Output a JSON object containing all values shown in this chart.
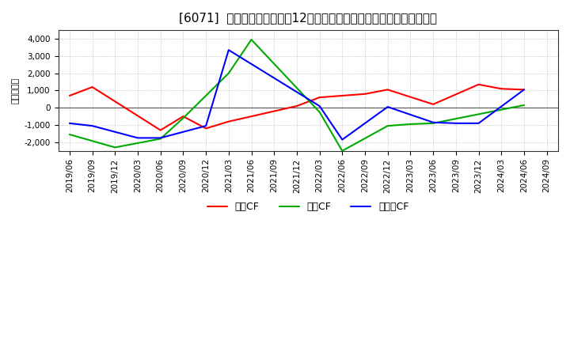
{
  "title": "[6071]  キャッシュフローの12か月移動合計の対前年同期増減額の推移",
  "ylabel": "（百万円）",
  "background_color": "#ffffff",
  "plot_background_color": "#ffffff",
  "grid_color": "#aaaaaa",
  "ylim": [
    -2500,
    4500
  ],
  "yticks": [
    -2000,
    -1000,
    0,
    1000,
    2000,
    3000,
    4000
  ],
  "dates": [
    "2019/06",
    "2019/09",
    "2019/12",
    "2020/03",
    "2020/06",
    "2020/09",
    "2020/12",
    "2021/03",
    "2021/06",
    "2021/09",
    "2021/12",
    "2022/03",
    "2022/06",
    "2022/09",
    "2022/12",
    "2023/03",
    "2023/06",
    "2023/09",
    "2023/12",
    "2024/03",
    "2024/06",
    "2024/09"
  ],
  "eigyo_x": [
    0,
    1,
    4,
    5,
    6,
    7,
    9,
    10,
    11,
    13,
    14,
    16,
    18,
    19,
    20
  ],
  "eigyo_y": [
    700,
    1200,
    -1300,
    -500,
    -1200,
    -800,
    -200,
    100,
    600,
    800,
    1050,
    200,
    1350,
    1100,
    1050
  ],
  "toshi_x": [
    0,
    2,
    4,
    5,
    7,
    8,
    11,
    12,
    14,
    15,
    16,
    20
  ],
  "toshi_y": [
    -1550,
    -2300,
    -1800,
    -600,
    2000,
    3950,
    -250,
    -2500,
    -1050,
    -950,
    -900,
    150
  ],
  "free_x": [
    0,
    1,
    3,
    4,
    6,
    7,
    11,
    12,
    14,
    16,
    17,
    18,
    20
  ],
  "free_y": [
    -900,
    -1050,
    -1750,
    -1750,
    -1050,
    3350,
    100,
    -1850,
    50,
    -850,
    -900,
    -900,
    1050
  ],
  "series": [
    {
      "name": "営業CF",
      "color": "#ff0000"
    },
    {
      "name": "投資CF",
      "color": "#00aa00"
    },
    {
      "name": "フリーCF",
      "color": "#0000ff"
    }
  ],
  "title_fontsize": 11,
  "tick_fontsize": 7.5,
  "ylabel_fontsize": 8,
  "legend_fontsize": 9
}
